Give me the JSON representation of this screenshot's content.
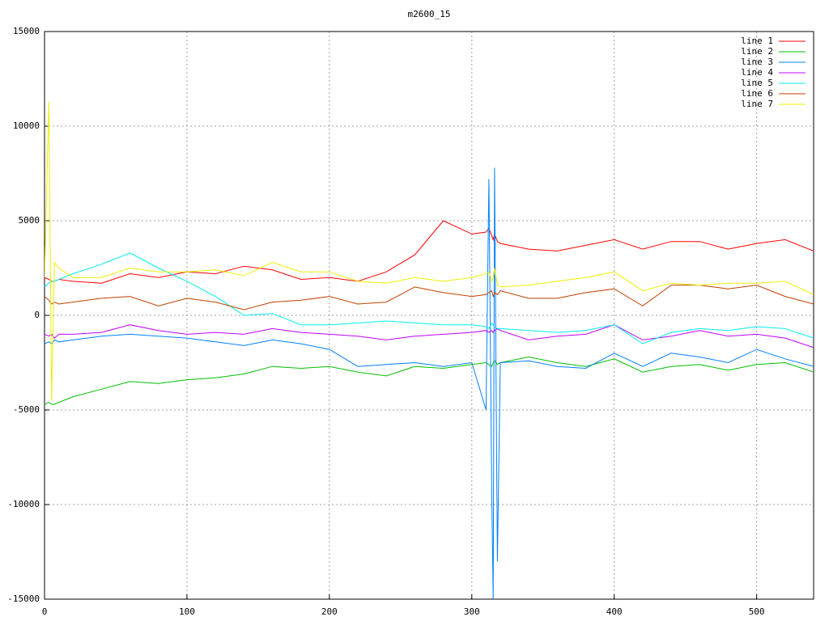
{
  "chart_data": {
    "type": "line",
    "title": "m2600_15",
    "x": [
      0,
      3,
      5,
      7,
      10,
      20,
      40,
      60,
      80,
      100,
      120,
      140,
      160,
      180,
      200,
      220,
      240,
      260,
      280,
      300,
      310,
      312,
      314,
      315,
      316,
      318,
      320,
      340,
      360,
      380,
      400,
      420,
      440,
      460,
      480,
      500,
      520,
      540
    ],
    "series": [
      {
        "name": "line 1",
        "color": "#ff0000",
        "values": [
          2000,
          1900,
          1800,
          1800,
          1900,
          1800,
          1700,
          2200,
          2000,
          2300,
          2200,
          2600,
          2400,
          1900,
          2000,
          1800,
          2300,
          3200,
          5000,
          4300,
          4400,
          4600,
          4200,
          4000,
          4300,
          3900,
          3800,
          3500,
          3400,
          3700,
          4000,
          3500,
          3900,
          3900,
          3500,
          3800,
          4000,
          3400
        ]
      },
      {
        "name": "line 2",
        "color": "#00c000",
        "values": [
          -4700,
          -4600,
          -4700,
          -4700,
          -4600,
          -4300,
          -3900,
          -3500,
          -3600,
          -3400,
          -3300,
          -3100,
          -2700,
          -2800,
          -2700,
          -3000,
          -3200,
          -2700,
          -2800,
          -2600,
          -2500,
          -2600,
          -2700,
          -2500,
          -2400,
          -2600,
          -2500,
          -2200,
          -2500,
          -2700,
          -2300,
          -3000,
          -2700,
          -2600,
          -2900,
          -2600,
          -2500,
          -3000
        ]
      },
      {
        "name": "line 3",
        "color": "#0080ff",
        "values": [
          -1500,
          -1400,
          -1500,
          -1300,
          -1400,
          -1300,
          -1100,
          -1000,
          -1100,
          -1200,
          -1400,
          -1600,
          -1300,
          -1500,
          -1800,
          -2700,
          -2600,
          -2500,
          -2700,
          -2500,
          -5000,
          7200,
          -9300,
          -15000,
          7800,
          -13000,
          -2500,
          -2400,
          -2700,
          -2800,
          -2000,
          -2700,
          -2000,
          -2200,
          -2500,
          -1800,
          -2300,
          -2700
        ]
      },
      {
        "name": "line 4",
        "color": "#c000ff",
        "values": [
          -1000,
          -1100,
          -1000,
          -1200,
          -1000,
          -1000,
          -900,
          -500,
          -800,
          -1000,
          -900,
          -1000,
          -700,
          -900,
          -1000,
          -1100,
          -1300,
          -1100,
          -1000,
          -900,
          -800,
          -900,
          -800,
          -900,
          -800,
          -700,
          -800,
          -1300,
          -1100,
          -1000,
          -500,
          -1300,
          -1100,
          -800,
          -1100,
          -1000,
          -1200,
          -1700
        ]
      },
      {
        "name": "line 5",
        "color": "#00eeee",
        "values": [
          1500,
          1700,
          1800,
          1800,
          1900,
          2200,
          2700,
          3300,
          2500,
          1800,
          1000,
          0,
          100,
          -500,
          -500,
          -400,
          -300,
          -400,
          -500,
          -500,
          -600,
          -700,
          -400,
          -500,
          -600,
          -700,
          -700,
          -800,
          -900,
          -800,
          -500,
          -1500,
          -900,
          -700,
          -800,
          -600,
          -700,
          -1200
        ]
      },
      {
        "name": "line 6",
        "color": "#c04000",
        "values": [
          1000,
          800,
          600,
          700,
          600,
          700,
          900,
          1000,
          500,
          900,
          700,
          300,
          700,
          800,
          1000,
          600,
          700,
          1500,
          1200,
          1000,
          1100,
          1200,
          1300,
          1000,
          1200,
          1100,
          1300,
          900,
          900,
          1200,
          1400,
          500,
          1600,
          1600,
          1400,
          1600,
          1000,
          600
        ]
      },
      {
        "name": "line 7",
        "color": "#eeee00",
        "values": [
          2000,
          11300,
          -4500,
          2800,
          2500,
          2000,
          2000,
          2500,
          2300,
          2300,
          2400,
          2100,
          2800,
          2300,
          2300,
          1800,
          1700,
          2000,
          1800,
          2000,
          2200,
          2300,
          1800,
          2000,
          2500,
          1600,
          1500,
          1600,
          1800,
          2000,
          2300,
          1300,
          1700,
          1600,
          1700,
          1700,
          1800,
          1100
        ]
      }
    ],
    "xlim": [
      0,
      540
    ],
    "xticks": [
      0,
      100,
      200,
      300,
      400,
      500
    ],
    "ylim": [
      -15000,
      15000
    ],
    "yticks": [
      -15000,
      -10000,
      -5000,
      0,
      5000,
      10000,
      15000
    ],
    "grid": true,
    "legend": "top-right"
  }
}
